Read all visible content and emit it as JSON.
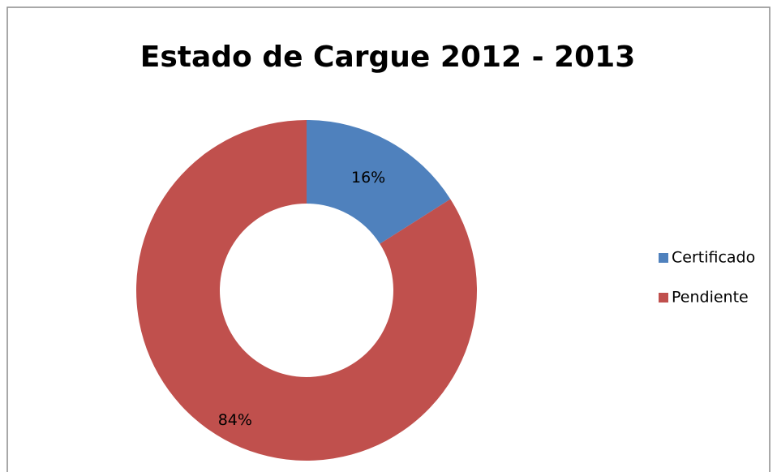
{
  "chart_data": {
    "type": "donut",
    "title": "Estado de Cargue 2012 - 2013",
    "categories": [
      "Certificado",
      "Pendiente"
    ],
    "values": [
      16,
      84
    ],
    "value_labels": [
      "16%",
      "84%"
    ],
    "colors": [
      "#4f81bd",
      "#c0504d"
    ],
    "legend": "right"
  }
}
